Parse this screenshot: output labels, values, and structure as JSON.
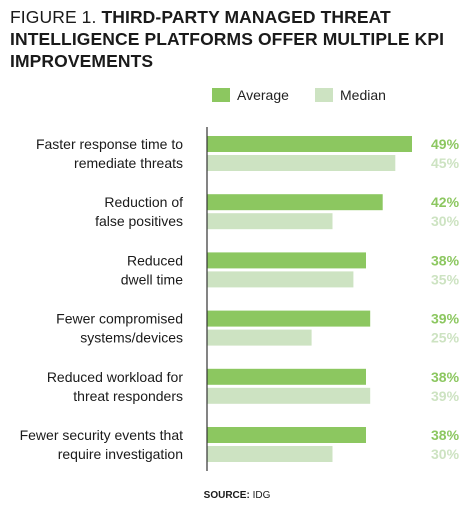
{
  "figure_label": "FIGURE 1.",
  "title": "THIRD-PARTY MANAGED THREAT INTELLIGENCE PLATFORMS OFFER MULTIPLE KPI IMPROVEMENTS",
  "source_label": "SOURCE:",
  "source_value": "IDG",
  "colors": {
    "average": "#8cc760",
    "median": "#cde3c2",
    "axis": "#333333"
  },
  "chart_data": {
    "type": "bar",
    "orientation": "horizontal",
    "categories": [
      [
        "Faster response time to",
        "remediate threats"
      ],
      [
        "Reduction of",
        "false positives"
      ],
      [
        "Reduced",
        "dwell time"
      ],
      [
        "Fewer compromised",
        "systems/devices"
      ],
      [
        "Reduced workload for",
        "threat responders"
      ],
      [
        "Fewer security events that",
        "require investigation"
      ]
    ],
    "series": [
      {
        "name": "Average",
        "values": [
          49,
          42,
          38,
          39,
          38,
          38
        ],
        "labels": [
          "49%",
          "42%",
          "38%",
          "39%",
          "38%",
          "38%"
        ]
      },
      {
        "name": "Median",
        "values": [
          45,
          30,
          35,
          25,
          39,
          30
        ],
        "labels": [
          "45%",
          "30%",
          "35%",
          "25%",
          "39%",
          "30%"
        ]
      }
    ],
    "xlim": [
      0,
      49
    ],
    "legend_position": "top-right",
    "grid": false
  }
}
